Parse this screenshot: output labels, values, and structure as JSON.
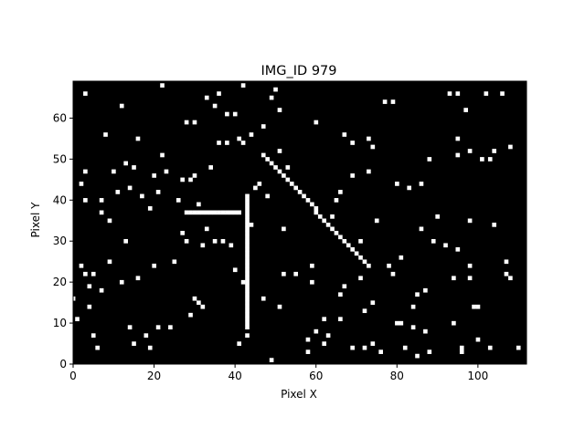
{
  "chart_data": {
    "type": "heatmap",
    "title": "IMG_ID 979",
    "xlabel": "Pixel X",
    "ylabel": "Pixel Y",
    "xlim": [
      0,
      112
    ],
    "ylim": [
      0,
      69
    ],
    "xticks": [
      0,
      20,
      40,
      60,
      80,
      100
    ],
    "yticks": [
      0,
      10,
      20,
      30,
      40,
      50,
      60
    ],
    "colors": {
      "background": "#000000",
      "pixel": "#ffffff",
      "frame": "#000000"
    },
    "horizontal_segment": {
      "x_start": 28,
      "x_end": 41,
      "y": 37
    },
    "vertical_segment": {
      "x": 43,
      "y_start": 9,
      "y_end": 41
    },
    "diagonal_segment": {
      "x_start": 47,
      "y_start": 51,
      "x_end": 73,
      "y_end": 24
    },
    "scattered_pixels": [
      [
        3,
        66
      ],
      [
        2,
        44
      ],
      [
        0,
        16
      ],
      [
        1,
        11
      ],
      [
        2,
        24
      ],
      [
        3,
        22
      ],
      [
        3,
        40
      ],
      [
        3,
        47
      ],
      [
        4,
        14
      ],
      [
        4,
        19
      ],
      [
        5,
        7
      ],
      [
        5,
        22
      ],
      [
        6,
        4
      ],
      [
        7,
        18
      ],
      [
        7,
        37
      ],
      [
        7,
        40
      ],
      [
        8,
        56
      ],
      [
        9,
        35
      ],
      [
        9,
        25
      ],
      [
        10,
        47
      ],
      [
        11,
        42
      ],
      [
        12,
        63
      ],
      [
        12,
        20
      ],
      [
        13,
        49
      ],
      [
        13,
        30
      ],
      [
        14,
        43
      ],
      [
        14,
        9
      ],
      [
        15,
        48
      ],
      [
        15,
        5
      ],
      [
        16,
        55
      ],
      [
        16,
        21
      ],
      [
        17,
        41
      ],
      [
        18,
        7
      ],
      [
        19,
        38
      ],
      [
        19,
        4
      ],
      [
        20,
        24
      ],
      [
        20,
        46
      ],
      [
        21,
        9
      ],
      [
        21,
        42
      ],
      [
        22,
        68
      ],
      [
        22,
        51
      ],
      [
        23,
        47
      ],
      [
        24,
        9
      ],
      [
        25,
        25
      ],
      [
        26,
        40
      ],
      [
        27,
        45
      ],
      [
        27,
        32
      ],
      [
        28,
        30
      ],
      [
        28,
        59
      ],
      [
        29,
        12
      ],
      [
        29,
        45
      ],
      [
        30,
        59
      ],
      [
        30,
        16
      ],
      [
        30,
        46
      ],
      [
        31,
        15
      ],
      [
        31,
        39
      ],
      [
        32,
        14
      ],
      [
        32,
        29
      ],
      [
        33,
        65
      ],
      [
        33,
        33
      ],
      [
        34,
        48
      ],
      [
        35,
        63
      ],
      [
        35,
        30
      ],
      [
        36,
        54
      ],
      [
        36,
        66
      ],
      [
        37,
        30
      ],
      [
        38,
        61
      ],
      [
        38,
        54
      ],
      [
        39,
        29
      ],
      [
        40,
        61
      ],
      [
        40,
        23
      ],
      [
        41,
        5
      ],
      [
        41,
        55
      ],
      [
        42,
        54
      ],
      [
        42,
        68
      ],
      [
        42,
        20
      ],
      [
        43,
        7
      ],
      [
        44,
        34
      ],
      [
        44,
        56
      ],
      [
        45,
        43
      ],
      [
        46,
        44
      ],
      [
        47,
        58
      ],
      [
        47,
        16
      ],
      [
        48,
        41
      ],
      [
        49,
        65
      ],
      [
        49,
        1
      ],
      [
        50,
        67
      ],
      [
        51,
        62
      ],
      [
        51,
        52
      ],
      [
        51,
        14
      ],
      [
        52,
        22
      ],
      [
        52,
        33
      ],
      [
        53,
        48
      ],
      [
        55,
        22
      ],
      [
        58,
        3
      ],
      [
        58,
        6
      ],
      [
        59,
        20
      ],
      [
        59,
        24
      ],
      [
        60,
        59
      ],
      [
        60,
        8
      ],
      [
        62,
        11
      ],
      [
        62,
        5
      ],
      [
        63,
        7
      ],
      [
        64,
        36
      ],
      [
        65,
        40
      ],
      [
        66,
        42
      ],
      [
        66,
        11
      ],
      [
        66,
        17
      ],
      [
        67,
        19
      ],
      [
        67,
        56
      ],
      [
        69,
        54
      ],
      [
        69,
        46
      ],
      [
        69,
        4
      ],
      [
        71,
        30
      ],
      [
        71,
        21
      ],
      [
        72,
        4
      ],
      [
        72,
        13
      ],
      [
        73,
        55
      ],
      [
        73,
        47
      ],
      [
        74,
        53
      ],
      [
        74,
        5
      ],
      [
        74,
        15
      ],
      [
        75,
        35
      ],
      [
        76,
        3
      ],
      [
        77,
        64
      ],
      [
        78,
        24
      ],
      [
        79,
        64
      ],
      [
        79,
        22
      ],
      [
        80,
        10
      ],
      [
        81,
        10
      ],
      [
        80,
        44
      ],
      [
        81,
        26
      ],
      [
        82,
        4
      ],
      [
        83,
        43
      ],
      [
        84,
        9
      ],
      [
        84,
        14
      ],
      [
        85,
        17
      ],
      [
        85,
        2
      ],
      [
        86,
        44
      ],
      [
        86,
        33
      ],
      [
        87,
        8
      ],
      [
        87,
        18
      ],
      [
        88,
        50
      ],
      [
        88,
        3
      ],
      [
        89,
        30
      ],
      [
        90,
        36
      ],
      [
        92,
        29
      ],
      [
        93,
        66
      ],
      [
        94,
        21
      ],
      [
        94,
        10
      ],
      [
        95,
        66
      ],
      [
        95,
        51
      ],
      [
        95,
        55
      ],
      [
        95,
        28
      ],
      [
        96,
        4
      ],
      [
        96,
        3
      ],
      [
        97,
        62
      ],
      [
        98,
        52
      ],
      [
        98,
        35
      ],
      [
        98,
        24
      ],
      [
        98,
        21
      ],
      [
        99,
        14
      ],
      [
        100,
        14
      ],
      [
        100,
        6
      ],
      [
        101,
        50
      ],
      [
        102,
        66
      ],
      [
        103,
        4
      ],
      [
        103,
        50
      ],
      [
        104,
        34
      ],
      [
        104,
        52
      ],
      [
        106,
        66
      ],
      [
        107,
        22
      ],
      [
        107,
        25
      ],
      [
        108,
        53
      ],
      [
        108,
        21
      ],
      [
        110,
        4
      ]
    ]
  }
}
